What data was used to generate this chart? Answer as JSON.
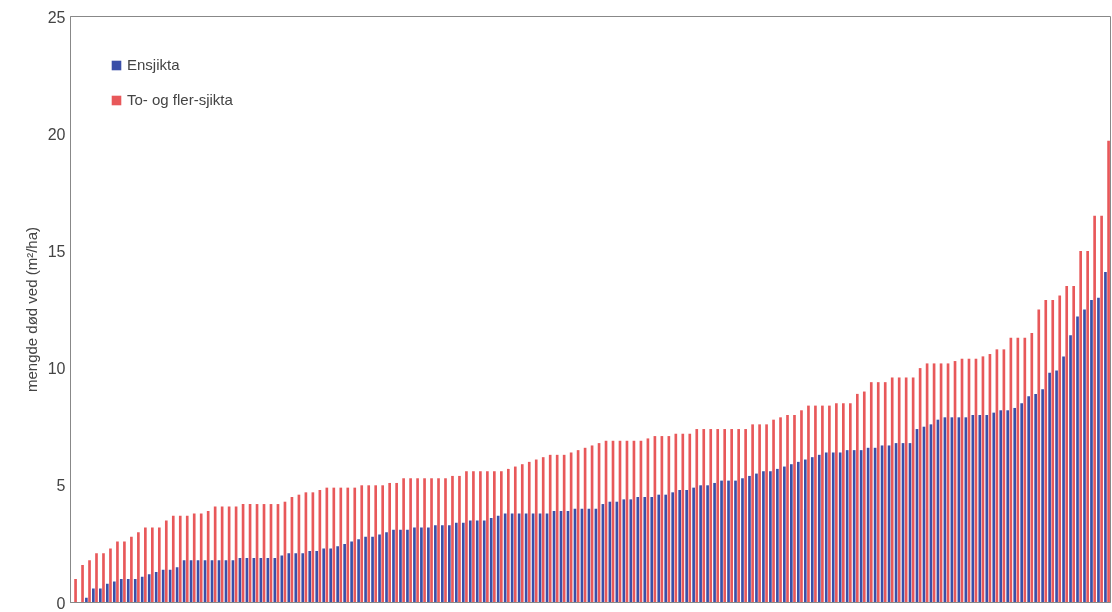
{
  "chart_data": {
    "type": "bar",
    "ylabel": "mengde død ved (m²/ha)",
    "categories": [
      null,
      null,
      null,
      null,
      null,
      null,
      null,
      null,
      null,
      null,
      null,
      null,
      null,
      null,
      null,
      null,
      null,
      null,
      null,
      null,
      null,
      null,
      null,
      null,
      null,
      null,
      null,
      null,
      null,
      null,
      null,
      null,
      null,
      null,
      null,
      null,
      null,
      null,
      null,
      null,
      null,
      null,
      null,
      null,
      null,
      null,
      null,
      null,
      null,
      null,
      null,
      null,
      null,
      null,
      null,
      null,
      null,
      null,
      null,
      null,
      null,
      null,
      null,
      null,
      null,
      null,
      null,
      null,
      null,
      null,
      null,
      null,
      null,
      null,
      null,
      null,
      null,
      null,
      null,
      null,
      null,
      null,
      null,
      null,
      null,
      null,
      null,
      null,
      null,
      null,
      null,
      null,
      null,
      null,
      null,
      null,
      null,
      null,
      null,
      null,
      null,
      null,
      null,
      null,
      null,
      null,
      null,
      null,
      null,
      null,
      null,
      null,
      null,
      null,
      null,
      null,
      null,
      null,
      null,
      null,
      null,
      null,
      null,
      null,
      null,
      null,
      null,
      null,
      null,
      null,
      null,
      null,
      null,
      null,
      null,
      null,
      null,
      null,
      null,
      null,
      null,
      null,
      null,
      null,
      null,
      null,
      null,
      null,
      null
    ],
    "series": [
      {
        "name": "Ensjikta",
        "color": "#3a4fa8",
        "values": [
          0,
          0,
          0.2,
          0.6,
          0.6,
          0.8,
          0.9,
          1.0,
          1.0,
          1.0,
          1.1,
          1.2,
          1.3,
          1.4,
          1.4,
          1.5,
          1.8,
          1.8,
          1.8,
          1.8,
          1.8,
          1.8,
          1.8,
          1.8,
          1.9,
          1.9,
          1.9,
          1.9,
          1.9,
          1.9,
          2.0,
          2.1,
          2.1,
          2.1,
          2.2,
          2.2,
          2.3,
          2.3,
          2.4,
          2.5,
          2.6,
          2.7,
          2.8,
          2.8,
          2.9,
          3.0,
          3.1,
          3.1,
          3.1,
          3.2,
          3.2,
          3.2,
          3.3,
          3.3,
          3.3,
          3.4,
          3.4,
          3.5,
          3.5,
          3.5,
          3.6,
          3.7,
          3.8,
          3.8,
          3.8,
          3.8,
          3.8,
          3.8,
          3.8,
          3.9,
          3.9,
          3.9,
          4.0,
          4.0,
          4.0,
          4.0,
          4.2,
          4.3,
          4.3,
          4.4,
          4.4,
          4.5,
          4.5,
          4.5,
          4.6,
          4.6,
          4.7,
          4.8,
          4.8,
          4.9,
          5.0,
          5.0,
          5.1,
          5.2,
          5.2,
          5.2,
          5.3,
          5.4,
          5.5,
          5.6,
          5.6,
          5.7,
          5.8,
          5.9,
          6.0,
          6.1,
          6.2,
          6.3,
          6.4,
          6.4,
          6.4,
          6.5,
          6.5,
          6.5,
          6.6,
          6.6,
          6.7,
          6.7,
          6.8,
          6.8,
          6.8,
          7.4,
          7.5,
          7.6,
          7.8,
          7.9,
          7.9,
          7.9,
          7.9,
          8.0,
          8.0,
          8.0,
          8.1,
          8.2,
          8.2,
          8.3,
          8.5,
          8.8,
          8.9,
          9.1,
          9.8,
          9.9,
          10.5,
          11.4,
          12.2,
          12.5,
          12.9,
          13.0,
          14.1
        ]
      },
      {
        "name": "To- og fler-sjikta",
        "color": "#e8585a",
        "values": [
          1.0,
          1.6,
          1.8,
          2.1,
          2.1,
          2.3,
          2.6,
          2.6,
          2.8,
          3.0,
          3.2,
          3.2,
          3.2,
          3.5,
          3.7,
          3.7,
          3.7,
          3.8,
          3.8,
          3.9,
          4.1,
          4.1,
          4.1,
          4.1,
          4.2,
          4.2,
          4.2,
          4.2,
          4.2,
          4.2,
          4.3,
          4.5,
          4.6,
          4.7,
          4.7,
          4.8,
          4.9,
          4.9,
          4.9,
          4.9,
          4.9,
          5.0,
          5.0,
          5.0,
          5.0,
          5.1,
          5.1,
          5.3,
          5.3,
          5.3,
          5.3,
          5.3,
          5.3,
          5.3,
          5.4,
          5.4,
          5.6,
          5.6,
          5.6,
          5.6,
          5.6,
          5.6,
          5.7,
          5.8,
          5.9,
          6.0,
          6.1,
          6.2,
          6.3,
          6.3,
          6.3,
          6.4,
          6.5,
          6.6,
          6.7,
          6.8,
          6.9,
          6.9,
          6.9,
          6.9,
          6.9,
          6.9,
          7.0,
          7.1,
          7.1,
          7.1,
          7.2,
          7.2,
          7.2,
          7.4,
          7.4,
          7.4,
          7.4,
          7.4,
          7.4,
          7.4,
          7.4,
          7.6,
          7.6,
          7.6,
          7.8,
          7.9,
          8.0,
          8.0,
          8.2,
          8.4,
          8.4,
          8.4,
          8.4,
          8.5,
          8.5,
          8.5,
          8.9,
          9.0,
          9.4,
          9.4,
          9.4,
          9.6,
          9.6,
          9.6,
          9.6,
          10.0,
          10.2,
          10.2,
          10.2,
          10.2,
          10.3,
          10.4,
          10.4,
          10.4,
          10.5,
          10.6,
          10.8,
          10.8,
          11.3,
          11.3,
          11.3,
          11.5,
          12.5,
          12.9,
          12.9,
          13.1,
          13.5,
          13.5,
          15.0,
          15.0,
          16.5,
          16.5,
          19.7
        ]
      }
    ],
    "ylim": [
      0,
      25
    ],
    "yticks": [
      0,
      5,
      10,
      15,
      20,
      25
    ],
    "tick_labels": "y",
    "legend": "top left"
  }
}
